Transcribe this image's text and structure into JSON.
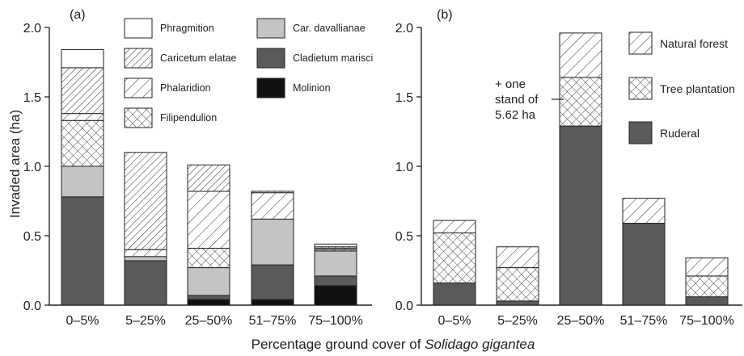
{
  "xlabel_prefix": "Percentage ground cover of ",
  "xlabel_species": "Solidago gigantea",
  "ylabel": "Invaded area (ha)",
  "chart_data": [
    {
      "type": "bar",
      "stacked": true,
      "panel": "(a)",
      "ylabel": "Invaded area (ha)",
      "ylim": [
        0,
        2.0
      ],
      "yticks": [
        "0.0",
        "0.5",
        "1.0",
        "1.5",
        "2.0"
      ],
      "categories": [
        "0–5%",
        "5–25%",
        "25–50%",
        "51–75%",
        "75–100%"
      ],
      "series": [
        {
          "name": "Molinion",
          "fill": "black",
          "values": [
            0.0,
            0.0,
            0.04,
            0.04,
            0.14
          ]
        },
        {
          "name": "Cladietum marisci",
          "fill": "darkgray",
          "values": [
            0.78,
            0.32,
            0.03,
            0.25,
            0.07
          ]
        },
        {
          "name": "Car. davallianae",
          "fill": "lightgray",
          "values": [
            0.22,
            0.03,
            0.2,
            0.33,
            0.18
          ]
        },
        {
          "name": "Filipendulion",
          "fill": "crosshatch",
          "values": [
            0.33,
            0.0,
            0.14,
            0.0,
            0.01
          ]
        },
        {
          "name": "Phalaridion",
          "fill": "diagonal-sparse",
          "values": [
            0.05,
            0.05,
            0.41,
            0.19,
            0.01
          ]
        },
        {
          "name": "Caricetum elatae",
          "fill": "diagonal-dense",
          "values": [
            0.33,
            0.7,
            0.19,
            0.01,
            0.01
          ]
        },
        {
          "name": "Phragmition",
          "fill": "white",
          "values": [
            0.13,
            0.0,
            0.0,
            0.0,
            0.02
          ]
        }
      ],
      "legend_order": [
        "Phragmition",
        "Caricetum elatae",
        "Phalaridion",
        "Filipendulion",
        "Car. davallianae",
        "Cladietum marisci",
        "Molinion"
      ]
    },
    {
      "type": "bar",
      "stacked": true,
      "panel": "(b)",
      "ylim": [
        0,
        2.0
      ],
      "yticks": [
        "0.0",
        "0.5",
        "1.0",
        "1.5",
        "2.0"
      ],
      "categories": [
        "0–5%",
        "5–25%",
        "25–50%",
        "51–75%",
        "75–100%"
      ],
      "series": [
        {
          "name": "Ruderal",
          "fill": "darkgray",
          "values": [
            0.16,
            0.03,
            1.29,
            0.59,
            0.06
          ]
        },
        {
          "name": "Tree plantation",
          "fill": "crosshatch",
          "values": [
            0.36,
            0.24,
            0.35,
            0.0,
            0.15
          ]
        },
        {
          "name": "Natural forest",
          "fill": "diagonal-sparse",
          "values": [
            0.09,
            0.15,
            0.32,
            0.18,
            0.13
          ]
        }
      ],
      "legend_order": [
        "Natural forest",
        "Tree plantation",
        "Ruderal"
      ],
      "annotation": [
        "+ one",
        "stand of",
        "5.62 ha"
      ]
    }
  ]
}
